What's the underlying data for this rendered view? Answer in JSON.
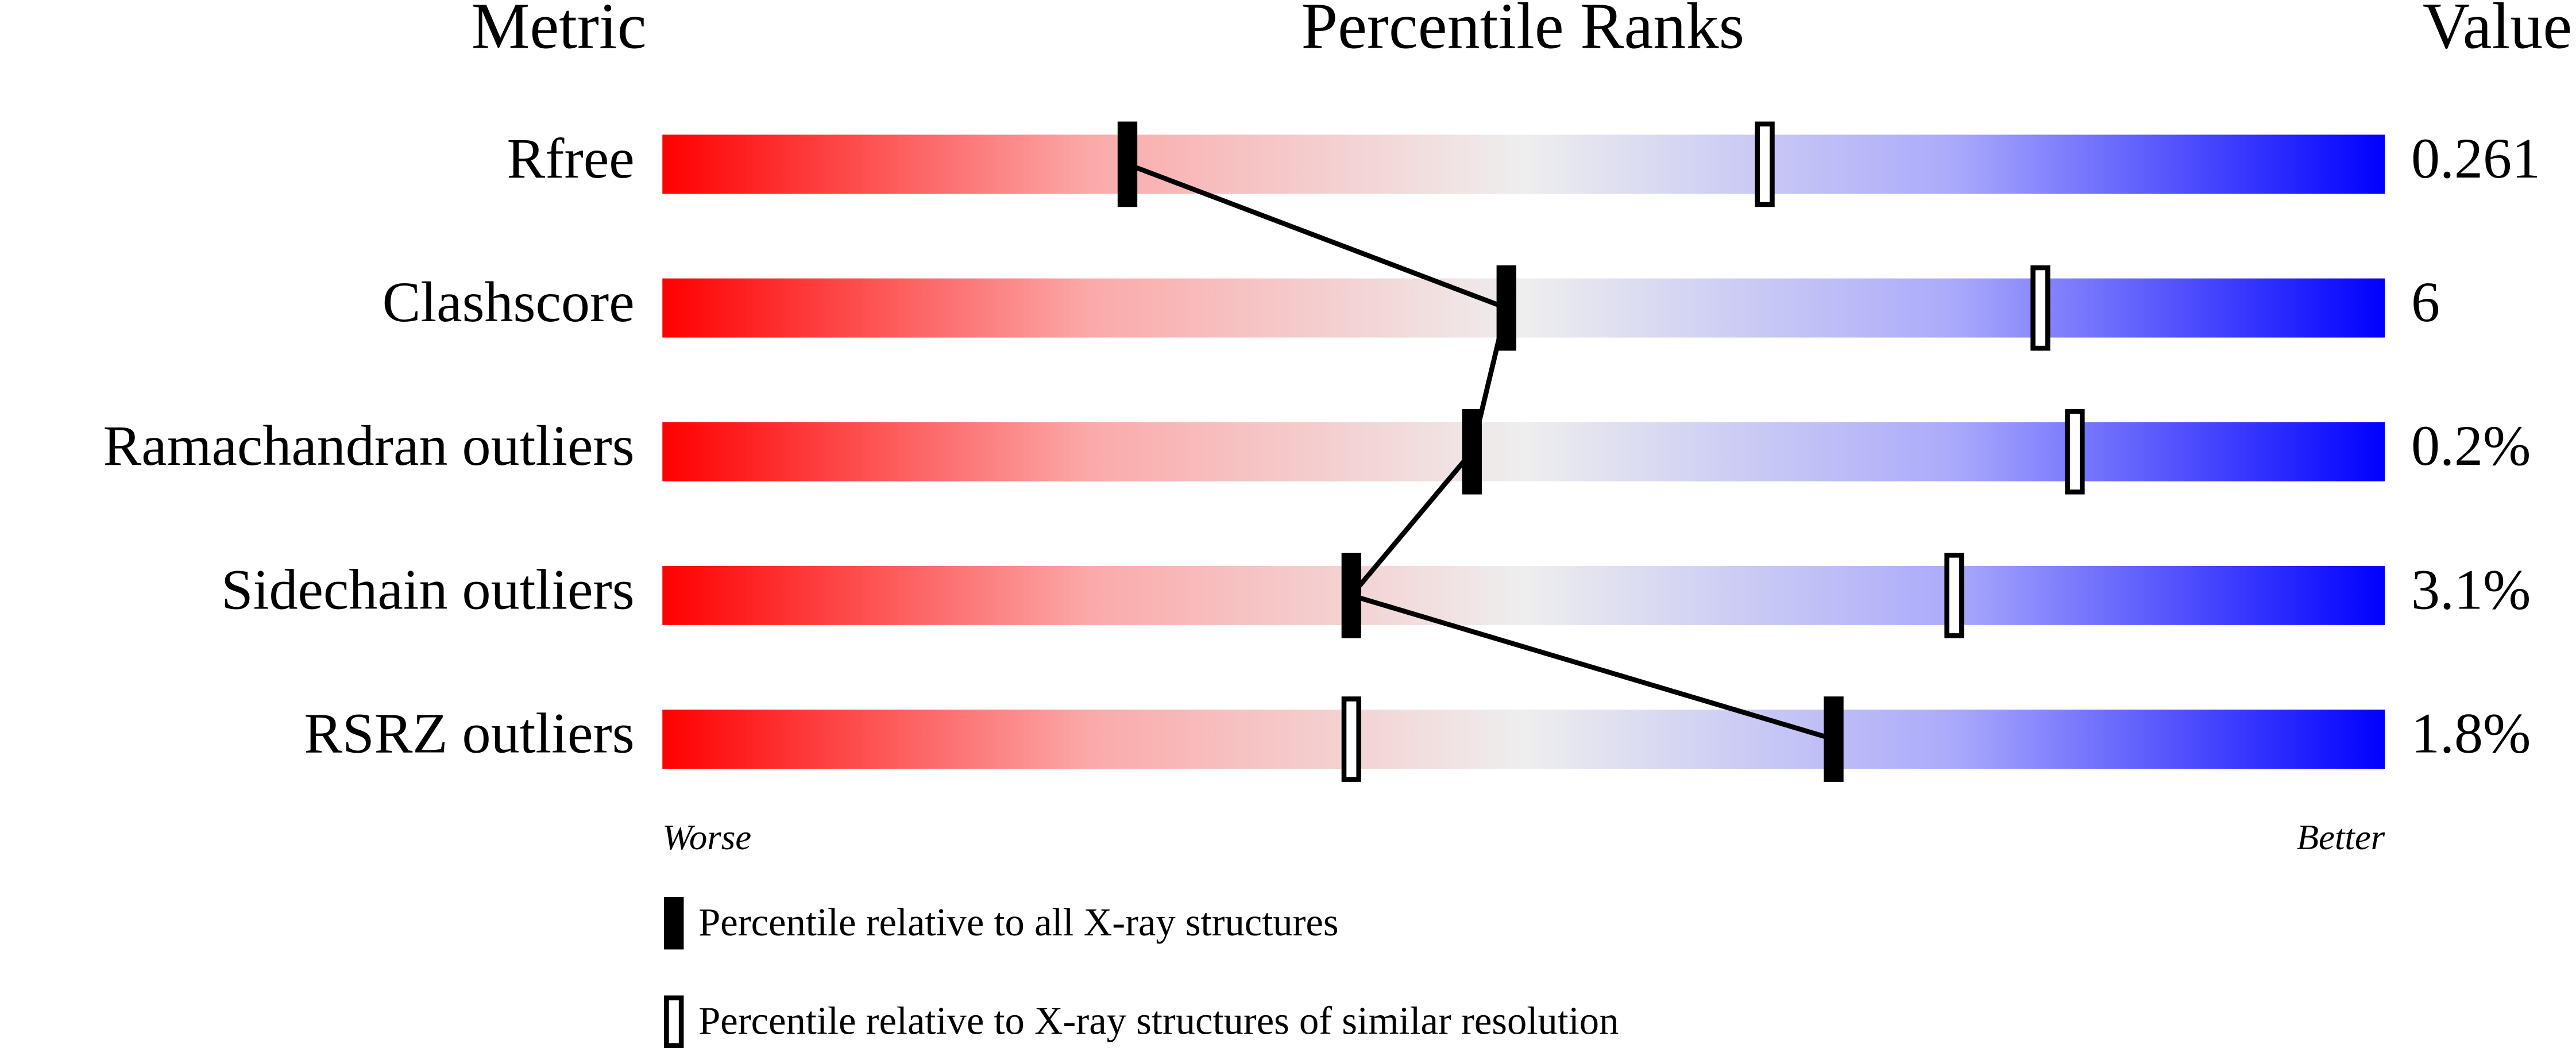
{
  "chart_data": {
    "type": "percentile",
    "headers": {
      "metric": "Metric",
      "title": "Percentile Ranks",
      "value": "Value"
    },
    "categories": [
      "Rfree",
      "Clashscore",
      "Ramachandran outliers",
      "Sidechain outliers",
      "RSRZ outliers"
    ],
    "metric_values": [
      "0.261",
      "6",
      "0.2%",
      "3.1%",
      "1.8%"
    ],
    "xlim": [
      0,
      100
    ],
    "worse_label": "Worse",
    "better_label": "Better",
    "series": [
      {
        "name": "Percentile relative to all X-ray structures",
        "color": "#000000",
        "marker": "filled",
        "connect": true,
        "values": [
          27,
          49,
          47,
          40,
          68
        ]
      },
      {
        "name": "Percentile relative to X-ray structures of similar resolution",
        "color": "#000000",
        "marker": "hollow",
        "connect": false,
        "values": [
          64,
          80,
          82,
          75,
          40
        ]
      }
    ]
  }
}
